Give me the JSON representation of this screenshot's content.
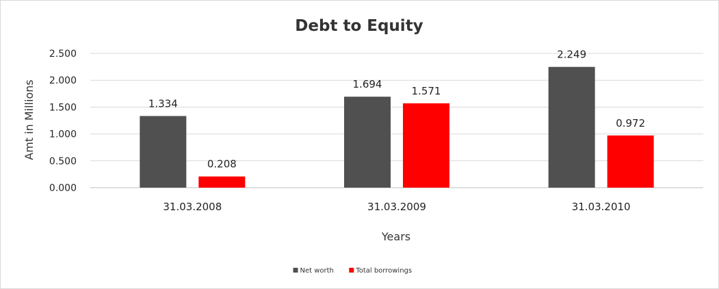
{
  "chart_data": {
    "type": "bar",
    "title": "Debt to Equity",
    "xlabel": "Years",
    "ylabel": "Amt in Millions",
    "categories": [
      "31.03.2008",
      "31.03.2009",
      "31.03.2010"
    ],
    "series": [
      {
        "name": "Net worth",
        "color": "#505050",
        "values": [
          1.334,
          1.694,
          2.249
        ],
        "labels": [
          "1.334",
          "1.694",
          "2.249"
        ]
      },
      {
        "name": "Total borrowings",
        "color": "#ff0000",
        "values": [
          0.208,
          1.571,
          0.972
        ],
        "labels": [
          "0.208",
          "1.571",
          "0.972"
        ]
      }
    ],
    "ylim": [
      0,
      2.5
    ],
    "yticks": [
      "0.000",
      "0.500",
      "1.000",
      "1.500",
      "2.000",
      "2.500"
    ],
    "grid": true,
    "legend_position": "bottom"
  }
}
